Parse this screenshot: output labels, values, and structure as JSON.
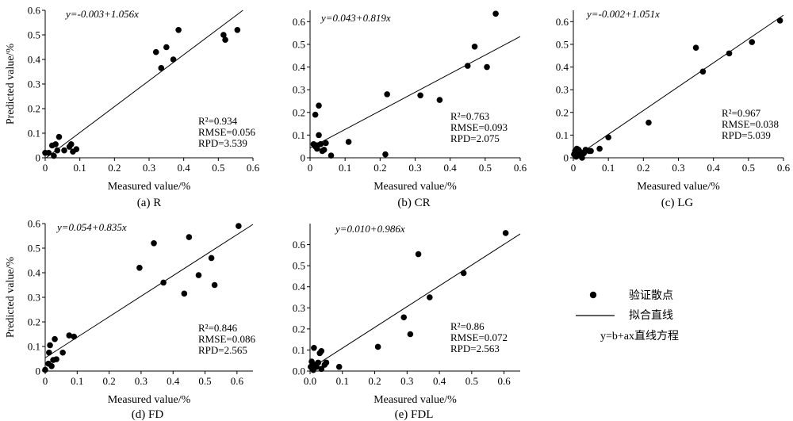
{
  "charts": [
    {
      "caption": "(a) R",
      "xlabel": "Measured value/%",
      "ylabel": "Predicted value/%",
      "equation": "y=-0.003+1.056x",
      "stats": {
        "r2": "R²=0.934",
        "rmse": "RMSE=0.056",
        "rpd": "RPD=3.539"
      },
      "xlim": [
        0,
        0.6
      ],
      "ylim": [
        0,
        0.6
      ],
      "xticks": [
        "0",
        "0.1",
        "0.2",
        "0.3",
        "0.4",
        "0.5",
        "0.6"
      ],
      "yticks": [
        "0",
        "0.1",
        "0.2",
        "0.3",
        "0.4",
        "0.5",
        "0.6"
      ],
      "fit": {
        "intercept": -0.003,
        "slope": 1.056
      },
      "points": [
        [
          0.0,
          0.02
        ],
        [
          0.01,
          0.02
        ],
        [
          0.02,
          0.05
        ],
        [
          0.025,
          0.008
        ],
        [
          0.03,
          0.055
        ],
        [
          0.035,
          0.03
        ],
        [
          0.04,
          0.085
        ],
        [
          0.055,
          0.03
        ],
        [
          0.07,
          0.045
        ],
        [
          0.075,
          0.055
        ],
        [
          0.08,
          0.025
        ],
        [
          0.09,
          0.035
        ],
        [
          0.32,
          0.43
        ],
        [
          0.335,
          0.365
        ],
        [
          0.35,
          0.45
        ],
        [
          0.37,
          0.4
        ],
        [
          0.385,
          0.52
        ],
        [
          0.515,
          0.5
        ],
        [
          0.52,
          0.48
        ],
        [
          0.555,
          0.52
        ]
      ]
    },
    {
      "caption": "(b) CR",
      "xlabel": "Measured value/%",
      "ylabel": "",
      "equation": "y=0.043+0.819x",
      "stats": {
        "r2": "R²=0.763",
        "rmse": "RMSE=0.093",
        "rpd": "RPD=2.075"
      },
      "xlim": [
        0,
        0.6
      ],
      "ylim": [
        0,
        0.65
      ],
      "xticks": [
        "0",
        "0.1",
        "0.2",
        "0.3",
        "0.4",
        "0.5",
        "0.6"
      ],
      "yticks": [
        "0",
        "0.1",
        "0.2",
        "0.3",
        "0.4",
        "0.5",
        "0.6"
      ],
      "fit": {
        "intercept": 0.043,
        "slope": 0.819
      },
      "points": [
        [
          0.01,
          0.06
        ],
        [
          0.015,
          0.05
        ],
        [
          0.015,
          0.19
        ],
        [
          0.02,
          0.055
        ],
        [
          0.02,
          0.04
        ],
        [
          0.025,
          0.23
        ],
        [
          0.025,
          0.1
        ],
        [
          0.03,
          0.06
        ],
        [
          0.035,
          0.03
        ],
        [
          0.04,
          0.035
        ],
        [
          0.045,
          0.065
        ],
        [
          0.06,
          0.01
        ],
        [
          0.11,
          0.07
        ],
        [
          0.215,
          0.015
        ],
        [
          0.22,
          0.28
        ],
        [
          0.315,
          0.275
        ],
        [
          0.37,
          0.255
        ],
        [
          0.45,
          0.405
        ],
        [
          0.47,
          0.49
        ],
        [
          0.505,
          0.4
        ],
        [
          0.53,
          0.635
        ]
      ]
    },
    {
      "caption": "(c) LG",
      "xlabel": "Measured value/%",
      "ylabel": "",
      "equation": "y=-0.002+1.051x",
      "stats": {
        "r2": "R²=0.967",
        "rmse": "RMSE=0.038",
        "rpd": "RPD=5.039"
      },
      "xlim": [
        0,
        0.6
      ],
      "ylim": [
        0,
        0.65
      ],
      "xticks": [
        "0",
        "0.1",
        "0.2",
        "0.3",
        "0.4",
        "0.5",
        "0.6"
      ],
      "yticks": [
        "0",
        "0.1",
        "0.2",
        "0.3",
        "0.4",
        "0.5",
        "0.6"
      ],
      "fit": {
        "intercept": -0.002,
        "slope": 1.051
      },
      "points": [
        [
          0.002,
          0.015
        ],
        [
          0.005,
          0.03
        ],
        [
          0.008,
          0.005
        ],
        [
          0.01,
          0.04
        ],
        [
          0.012,
          0.02
        ],
        [
          0.015,
          0.035
        ],
        [
          0.018,
          0.01
        ],
        [
          0.02,
          0.025
        ],
        [
          0.025,
          0.0
        ],
        [
          0.03,
          0.02
        ],
        [
          0.035,
          0.035
        ],
        [
          0.045,
          0.03
        ],
        [
          0.05,
          0.03
        ],
        [
          0.075,
          0.04
        ],
        [
          0.1,
          0.09
        ],
        [
          0.215,
          0.155
        ],
        [
          0.35,
          0.485
        ],
        [
          0.37,
          0.38
        ],
        [
          0.445,
          0.46
        ],
        [
          0.51,
          0.51
        ],
        [
          0.59,
          0.605
        ]
      ]
    },
    {
      "caption": "(d) FD",
      "xlabel": "Measured value/%",
      "ylabel": "Predicted value/%",
      "equation": "y=0.054+0.835x",
      "stats": {
        "r2": "R²=0.846",
        "rmse": "RMSE=0.086",
        "rpd": "RPD=2.565"
      },
      "xlim": [
        0,
        0.65
      ],
      "ylim": [
        0,
        0.6
      ],
      "xticks": [
        "0",
        "0.1",
        "0.2",
        "0.3",
        "0.4",
        "0.5",
        "0.6"
      ],
      "yticks": [
        "0",
        "0.1",
        "0.2",
        "0.3",
        "0.4",
        "0.5",
        "0.6"
      ],
      "fit": {
        "intercept": 0.054,
        "slope": 0.835
      },
      "points": [
        [
          0.0,
          0.005
        ],
        [
          0.01,
          0.03
        ],
        [
          0.012,
          0.075
        ],
        [
          0.015,
          0.105
        ],
        [
          0.02,
          0.02
        ],
        [
          0.025,
          0.045
        ],
        [
          0.03,
          0.13
        ],
        [
          0.035,
          0.048
        ],
        [
          0.055,
          0.075
        ],
        [
          0.075,
          0.145
        ],
        [
          0.09,
          0.14
        ],
        [
          0.295,
          0.42
        ],
        [
          0.34,
          0.52
        ],
        [
          0.37,
          0.36
        ],
        [
          0.435,
          0.315
        ],
        [
          0.45,
          0.545
        ],
        [
          0.48,
          0.39
        ],
        [
          0.52,
          0.46
        ],
        [
          0.53,
          0.35
        ],
        [
          0.605,
          0.59
        ]
      ]
    },
    {
      "caption": "(e) FDL",
      "xlabel": "Measured value/%",
      "ylabel": "",
      "equation": "y=0.010+0.986x",
      "stats": {
        "r2": "R²=0.86",
        "rmse": "RMSE=0.072",
        "rpd": "RPD=2.563"
      },
      "xlim": [
        0,
        0.65
      ],
      "ylim": [
        0,
        0.7
      ],
      "xticks": [
        "0.0",
        "0.1",
        "0.2",
        "0.3",
        "0.4",
        "0.5",
        "0.6"
      ],
      "yticks": [
        "0.0",
        "0.1",
        "0.2",
        "0.3",
        "0.4",
        "0.5",
        "0.6"
      ],
      "fit": {
        "intercept": 0.01,
        "slope": 0.986
      },
      "points": [
        [
          0.002,
          0.02
        ],
        [
          0.005,
          0.045
        ],
        [
          0.01,
          0.005
        ],
        [
          0.012,
          0.11
        ],
        [
          0.015,
          0.03
        ],
        [
          0.02,
          0.02
        ],
        [
          0.025,
          0.04
        ],
        [
          0.03,
          0.085
        ],
        [
          0.035,
          0.095
        ],
        [
          0.035,
          0.01
        ],
        [
          0.045,
          0.03
        ],
        [
          0.05,
          0.04
        ],
        [
          0.09,
          0.02
        ],
        [
          0.21,
          0.115
        ],
        [
          0.29,
          0.255
        ],
        [
          0.31,
          0.175
        ],
        [
          0.335,
          0.555
        ],
        [
          0.37,
          0.35
        ],
        [
          0.475,
          0.465
        ],
        [
          0.605,
          0.655
        ]
      ]
    }
  ],
  "legend": {
    "points_label": "验证散点",
    "line_label": "拟合直线",
    "equation_label": "y=b+ax直线方程"
  },
  "chart_data": [
    {
      "type": "scatter",
      "title": "(a) R",
      "xlabel": "Measured value/%",
      "ylabel": "Predicted value/%",
      "xlim": [
        0,
        0.6
      ],
      "ylim": [
        0,
        0.6
      ],
      "fit_line": "y=-0.003+1.056x",
      "stats": [
        "R²=0.934",
        "RMSE=0.056",
        "RPD=3.539"
      ],
      "x": [
        0.0,
        0.01,
        0.02,
        0.025,
        0.03,
        0.035,
        0.04,
        0.055,
        0.07,
        0.075,
        0.08,
        0.09,
        0.32,
        0.335,
        0.35,
        0.37,
        0.385,
        0.515,
        0.52,
        0.555
      ],
      "y": [
        0.02,
        0.02,
        0.05,
        0.008,
        0.055,
        0.03,
        0.085,
        0.03,
        0.045,
        0.055,
        0.025,
        0.035,
        0.43,
        0.365,
        0.45,
        0.4,
        0.52,
        0.5,
        0.48,
        0.52
      ]
    },
    {
      "type": "scatter",
      "title": "(b) CR",
      "xlabel": "Measured value/%",
      "ylabel": "",
      "xlim": [
        0,
        0.6
      ],
      "ylim": [
        0,
        0.65
      ],
      "fit_line": "y=0.043+0.819x",
      "stats": [
        "R²=0.763",
        "RMSE=0.093",
        "RPD=2.075"
      ],
      "x": [
        0.01,
        0.015,
        0.015,
        0.02,
        0.02,
        0.025,
        0.025,
        0.03,
        0.035,
        0.04,
        0.045,
        0.06,
        0.11,
        0.215,
        0.22,
        0.315,
        0.37,
        0.45,
        0.47,
        0.505,
        0.53
      ],
      "y": [
        0.06,
        0.05,
        0.19,
        0.055,
        0.04,
        0.23,
        0.1,
        0.06,
        0.03,
        0.035,
        0.065,
        0.01,
        0.07,
        0.015,
        0.28,
        0.275,
        0.255,
        0.405,
        0.49,
        0.4,
        0.635
      ]
    },
    {
      "type": "scatter",
      "title": "(c) LG",
      "xlabel": "Measured value/%",
      "ylabel": "",
      "xlim": [
        0,
        0.6
      ],
      "ylim": [
        0,
        0.65
      ],
      "fit_line": "y=-0.002+1.051x",
      "stats": [
        "R²=0.967",
        "RMSE=0.038",
        "RPD=5.039"
      ],
      "x": [
        0.002,
        0.005,
        0.008,
        0.01,
        0.012,
        0.015,
        0.018,
        0.02,
        0.025,
        0.03,
        0.035,
        0.045,
        0.05,
        0.075,
        0.1,
        0.215,
        0.35,
        0.37,
        0.445,
        0.51,
        0.59
      ],
      "y": [
        0.015,
        0.03,
        0.005,
        0.04,
        0.02,
        0.035,
        0.01,
        0.025,
        0.0,
        0.02,
        0.035,
        0.03,
        0.03,
        0.04,
        0.09,
        0.155,
        0.485,
        0.38,
        0.46,
        0.51,
        0.605
      ]
    },
    {
      "type": "scatter",
      "title": "(d) FD",
      "xlabel": "Measured value/%",
      "ylabel": "Predicted value/%",
      "xlim": [
        0,
        0.65
      ],
      "ylim": [
        0,
        0.6
      ],
      "fit_line": "y=0.054+0.835x",
      "stats": [
        "R²=0.846",
        "RMSE=0.086",
        "RPD=2.565"
      ],
      "x": [
        0.0,
        0.01,
        0.012,
        0.015,
        0.02,
        0.025,
        0.03,
        0.035,
        0.055,
        0.075,
        0.09,
        0.295,
        0.34,
        0.37,
        0.435,
        0.45,
        0.48,
        0.52,
        0.53,
        0.605
      ],
      "y": [
        0.005,
        0.03,
        0.075,
        0.105,
        0.02,
        0.045,
        0.13,
        0.048,
        0.075,
        0.145,
        0.14,
        0.42,
        0.52,
        0.36,
        0.315,
        0.545,
        0.39,
        0.46,
        0.35,
        0.59
      ]
    },
    {
      "type": "scatter",
      "title": "(e) FDL",
      "xlabel": "Measured value/%",
      "ylabel": "",
      "xlim": [
        0,
        0.65
      ],
      "ylim": [
        0,
        0.7
      ],
      "fit_line": "y=0.010+0.986x",
      "stats": [
        "R²=0.86",
        "RMSE=0.072",
        "RPD=2.563"
      ],
      "x": [
        0.002,
        0.005,
        0.01,
        0.012,
        0.015,
        0.02,
        0.025,
        0.03,
        0.035,
        0.035,
        0.045,
        0.05,
        0.09,
        0.21,
        0.29,
        0.31,
        0.335,
        0.37,
        0.475,
        0.605
      ],
      "y": [
        0.02,
        0.045,
        0.005,
        0.11,
        0.03,
        0.02,
        0.04,
        0.085,
        0.095,
        0.01,
        0.03,
        0.04,
        0.02,
        0.115,
        0.255,
        0.175,
        0.555,
        0.35,
        0.465,
        0.655
      ]
    }
  ]
}
